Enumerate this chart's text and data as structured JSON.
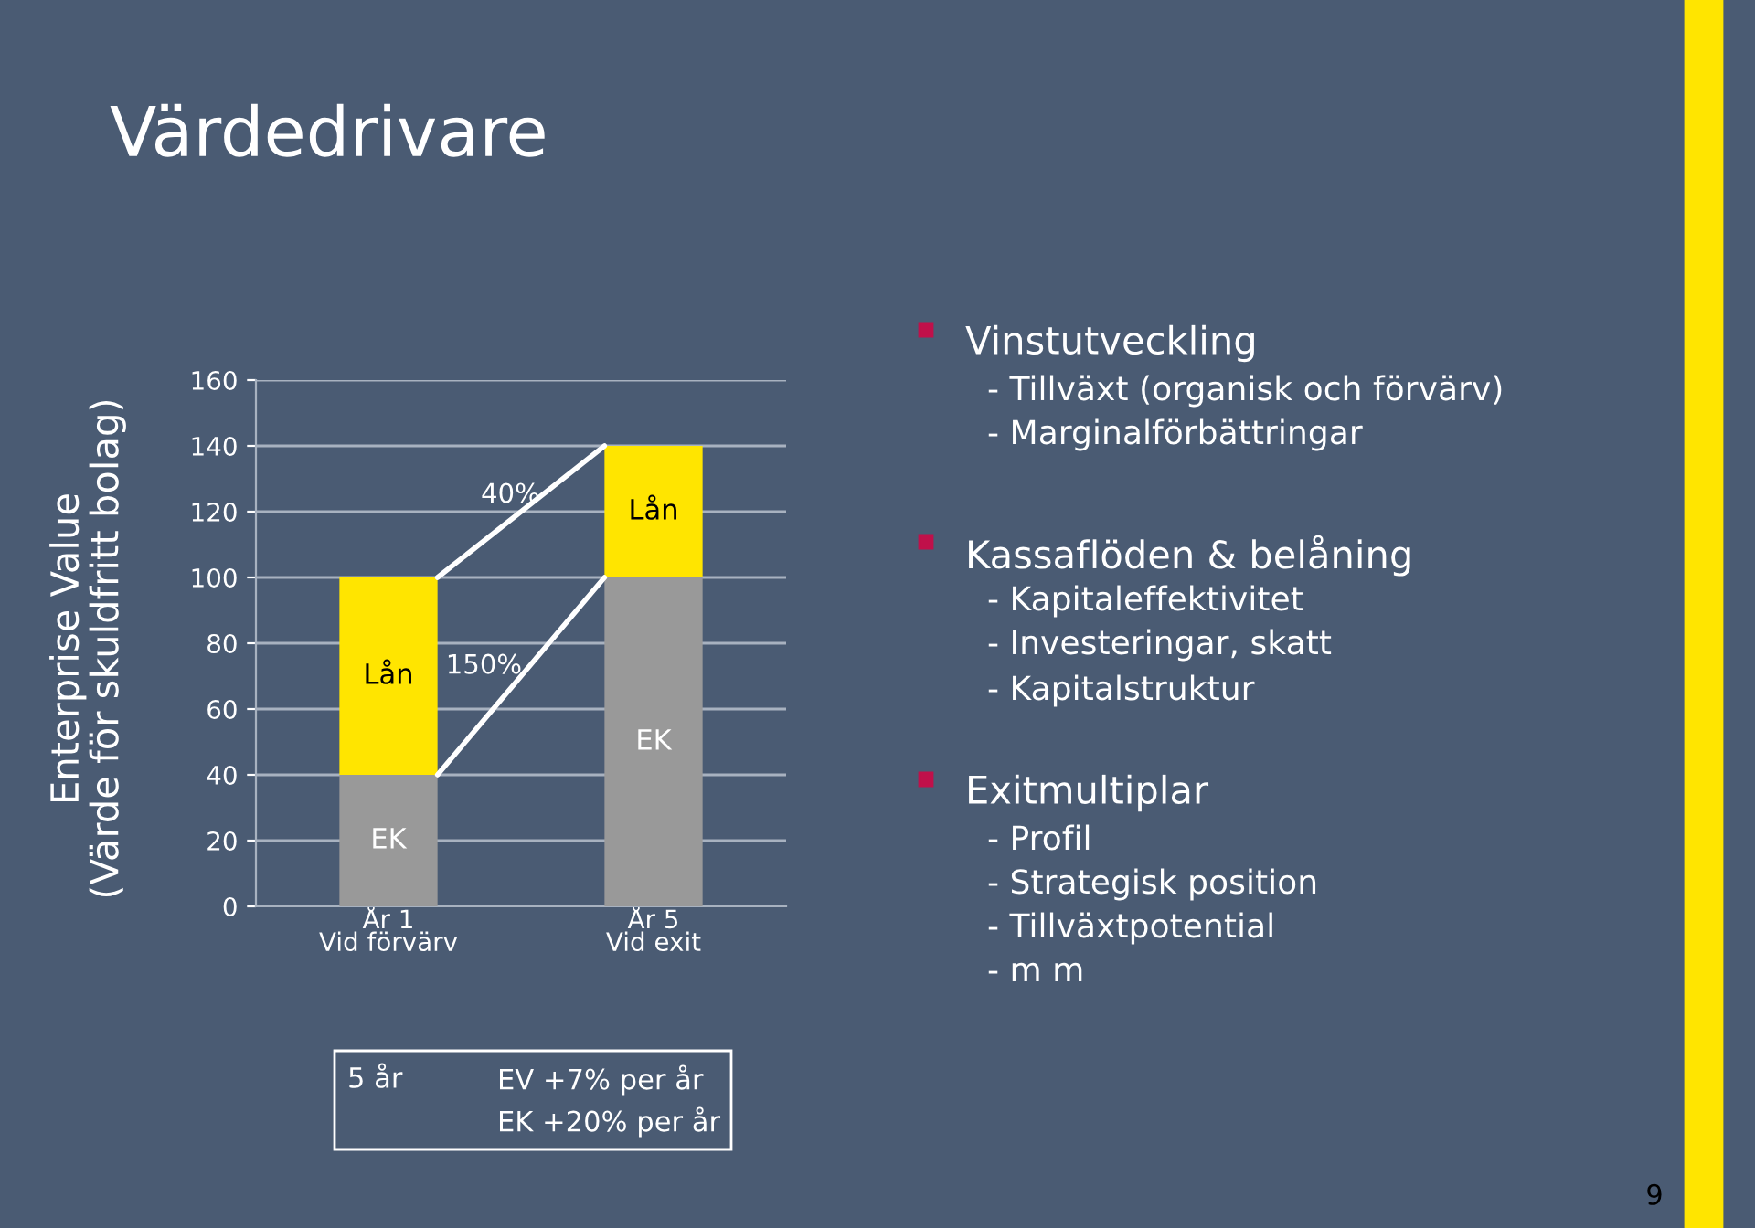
{
  "chart_data": {
    "type": "bar",
    "title": "Värdedrivare",
    "ylabel": "Enterprise Value\n(Värde för skuldfritt bolag)",
    "categories": [
      "År 1\nVid förvärv",
      "År 5\nVid exit"
    ],
    "stacked": true,
    "series": [
      {
        "name": "EK",
        "color": "#999999",
        "values": [
          40,
          100
        ]
      },
      {
        "name": "Lån",
        "color": "#ffe500",
        "values": [
          60,
          40
        ]
      }
    ],
    "ylim": [
      0,
      160
    ],
    "yticks": [
      0,
      20,
      40,
      60,
      80,
      100,
      120,
      140,
      160
    ],
    "grid": "y",
    "annotations": [
      "40%",
      "150%",
      "5 år",
      "EV +7% per år",
      "EK +20% per år",
      "Vinstutveckling",
      "- Tillväxt (organisk och förvärv)",
      "- Marginalförbättringar",
      "Kassaflöden & belåning",
      "- Kapitaleffektivitet",
      "- Investeringar, skatt",
      "- Kapitalstruktur",
      "Exitmultiplar",
      "- Profil",
      "- Strategisk position",
      "- Tillväxtpotential",
      "- m m",
      "9"
    ]
  }
}
